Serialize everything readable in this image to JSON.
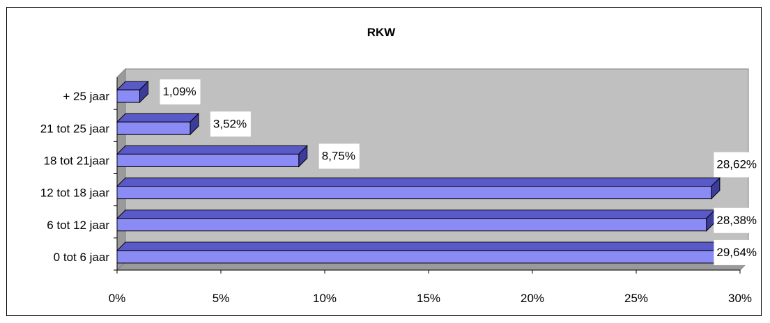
{
  "chart_data": {
    "type": "bar",
    "orientation": "horizontal",
    "style": "3d",
    "title": "RKW",
    "categories": [
      "0 tot 6 jaar",
      "6 tot 12 jaar",
      "12 tot 18 jaar",
      "18 tot 21jaar",
      "21 tot 25 jaar",
      "+ 25 jaar"
    ],
    "values": [
      29.64,
      28.38,
      28.62,
      8.75,
      3.52,
      1.09
    ],
    "data_labels": [
      "29,64%",
      "28,38%",
      "28,62%",
      "8,75%",
      "3,52%",
      "1,09%"
    ],
    "x_ticks": [
      "0%",
      "5%",
      "10%",
      "15%",
      "20%",
      "25%",
      "30%"
    ],
    "xlim": [
      0,
      30
    ],
    "xlabel": "",
    "ylabel": "",
    "grid": false,
    "legend": "none",
    "colors": {
      "bar_front": "#8b8bf5",
      "bar_top": "#5959c8",
      "bar_side": "#3c3c9a",
      "plot_back": "#c0c0c0",
      "plot_floor": "#9a9a9a"
    }
  }
}
